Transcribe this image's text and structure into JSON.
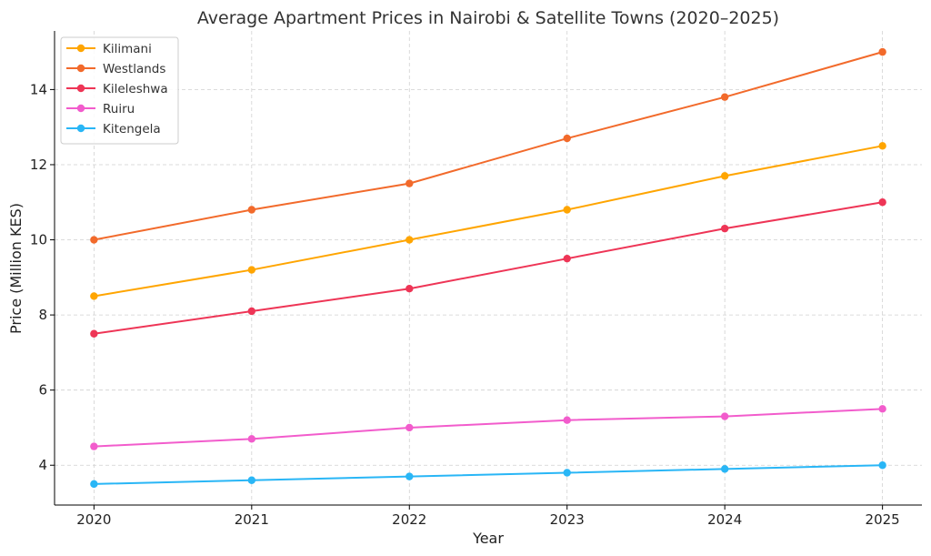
{
  "chart_data": {
    "type": "line",
    "title": "Average Apartment Prices in Nairobi & Satellite Towns (2020–2025)",
    "xlabel": "Year",
    "ylabel": "Price (Million KES)",
    "x": [
      2020,
      2021,
      2022,
      2023,
      2024,
      2025
    ],
    "x_tick_labels": [
      "2020",
      "2021",
      "2022",
      "2023",
      "2024",
      "2025"
    ],
    "y_ticks": [
      4,
      6,
      8,
      10,
      12,
      14
    ],
    "y_tick_labels": [
      "4",
      "6",
      "8",
      "10",
      "12",
      "14"
    ],
    "ylim": [
      2.94,
      15.56
    ],
    "grid": true,
    "legend_position": "top-left",
    "series": [
      {
        "name": "Kilimani",
        "color": "#ffa500",
        "values": [
          8.5,
          9.2,
          10.0,
          10.8,
          11.7,
          12.5
        ]
      },
      {
        "name": "Westlands",
        "color": "#f26a2b",
        "values": [
          10.0,
          10.8,
          11.5,
          12.7,
          13.8,
          15.0
        ]
      },
      {
        "name": "Kileleshwa",
        "color": "#ee3556",
        "values": [
          7.5,
          8.1,
          8.7,
          9.5,
          10.3,
          11.0
        ]
      },
      {
        "name": "Ruiru",
        "color": "#f25ccc",
        "values": [
          4.5,
          4.7,
          5.0,
          5.2,
          5.3,
          5.5
        ]
      },
      {
        "name": "Kitengela",
        "color": "#29b6f6",
        "values": [
          3.5,
          3.6,
          3.7,
          3.8,
          3.9,
          4.0
        ]
      }
    ]
  }
}
